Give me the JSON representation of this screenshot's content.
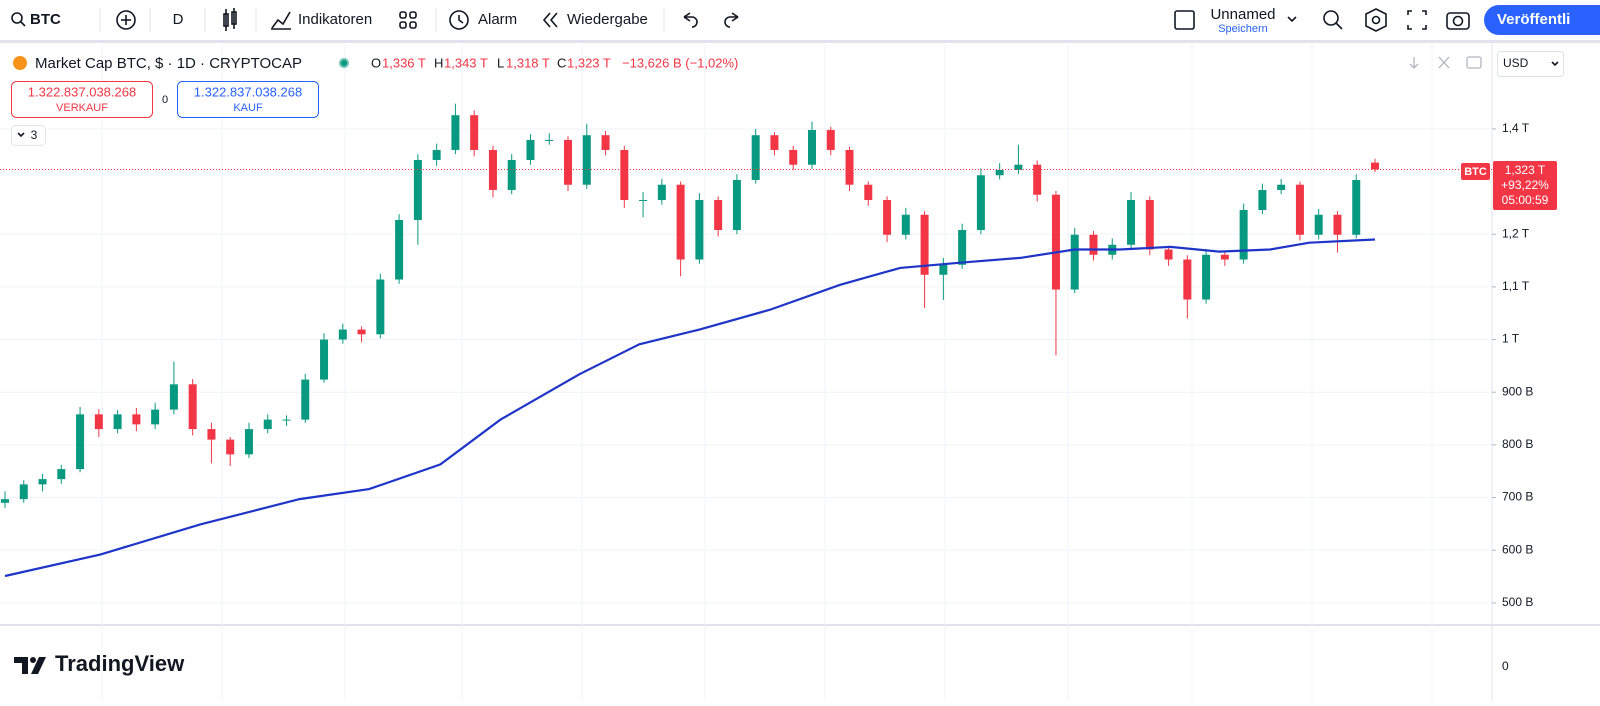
{
  "toolbar": {
    "symbol": "BTC",
    "interval": "D",
    "indicators": "Indikatoren",
    "alert": "Alarm",
    "replay": "Wiedergabe",
    "layout_name": "Unnamed",
    "save": "Speichern",
    "publish": "Veröffentli"
  },
  "legend": {
    "title": "Market Cap BTC, $ · 1D · CRYPTOCAP",
    "o_label": "O",
    "open": "1,336 T",
    "h_label": "H",
    "high": "1,343 T",
    "l_label": "L",
    "low": "1,318 T",
    "c_label": "C",
    "close": "1,323 T",
    "change": "−13,626 B (−1,02%)"
  },
  "trade": {
    "sell_price": "1.322.837.038.268",
    "sell_label": "VERKAUF",
    "spread": "0",
    "buy_price": "1.322.837.038.268",
    "buy_label": "KAUF"
  },
  "indicator_count": "3",
  "currency": "USD",
  "price_label": {
    "symbol": "BTC",
    "price": "1,323 T",
    "change": "+93,22%",
    "countdown": "05:00:59"
  },
  "lower_pane_tick": "0",
  "brand": "TradingView",
  "chart_data": {
    "type": "candlestick",
    "up_color": "#089981",
    "down_color": "#f23645",
    "ohlc": [
      [
        690,
        712,
        680,
        697
      ],
      [
        697,
        733,
        690,
        725
      ],
      [
        725,
        745,
        712,
        735
      ],
      [
        735,
        762,
        726,
        754
      ],
      [
        754,
        872,
        748,
        858
      ],
      [
        858,
        868,
        815,
        830
      ],
      [
        830,
        866,
        822,
        858
      ],
      [
        858,
        870,
        826,
        839
      ],
      [
        839,
        880,
        830,
        867
      ],
      [
        867,
        958,
        858,
        915
      ],
      [
        915,
        925,
        818,
        830
      ],
      [
        830,
        842,
        765,
        810
      ],
      [
        810,
        815,
        760,
        782
      ],
      [
        782,
        842,
        775,
        830
      ],
      [
        830,
        858,
        822,
        848
      ],
      [
        848,
        856,
        836,
        848
      ],
      [
        848,
        935,
        842,
        924
      ],
      [
        924,
        1012,
        918,
        1000
      ],
      [
        1000,
        1030,
        992,
        1019
      ],
      [
        1019,
        1025,
        995,
        1010
      ],
      [
        1010,
        1125,
        1002,
        1114
      ],
      [
        1114,
        1238,
        1106,
        1227
      ],
      [
        1227,
        1352,
        1180,
        1341
      ],
      [
        1341,
        1372,
        1330,
        1360
      ],
      [
        1360,
        1448,
        1352,
        1426
      ],
      [
        1426,
        1435,
        1348,
        1360
      ],
      [
        1360,
        1368,
        1270,
        1284
      ],
      [
        1284,
        1352,
        1276,
        1341
      ],
      [
        1341,
        1390,
        1332,
        1379
      ],
      [
        1379,
        1392,
        1370,
        1379
      ],
      [
        1379,
        1386,
        1282,
        1294
      ],
      [
        1294,
        1410,
        1286,
        1388
      ],
      [
        1388,
        1396,
        1350,
        1360
      ],
      [
        1360,
        1368,
        1250,
        1265
      ],
      [
        1265,
        1280,
        1232,
        1265
      ],
      [
        1265,
        1305,
        1256,
        1294
      ],
      [
        1294,
        1300,
        1120,
        1152
      ],
      [
        1152,
        1278,
        1144,
        1265
      ],
      [
        1265,
        1272,
        1196,
        1208
      ],
      [
        1208,
        1314,
        1200,
        1303
      ],
      [
        1303,
        1400,
        1296,
        1388
      ],
      [
        1388,
        1394,
        1350,
        1360
      ],
      [
        1360,
        1368,
        1322,
        1332
      ],
      [
        1332,
        1414,
        1324,
        1398
      ],
      [
        1398,
        1404,
        1350,
        1360
      ],
      [
        1360,
        1366,
        1282,
        1294
      ],
      [
        1294,
        1300,
        1254,
        1265
      ],
      [
        1265,
        1272,
        1185,
        1199
      ],
      [
        1199,
        1250,
        1190,
        1237
      ],
      [
        1237,
        1244,
        1060,
        1123
      ],
      [
        1123,
        1155,
        1075,
        1142
      ],
      [
        1142,
        1220,
        1134,
        1208
      ],
      [
        1208,
        1325,
        1200,
        1312
      ],
      [
        1312,
        1335,
        1304,
        1322
      ],
      [
        1322,
        1370,
        1314,
        1332
      ],
      [
        1332,
        1340,
        1262,
        1275
      ],
      [
        1275,
        1282,
        970,
        1095
      ],
      [
        1095,
        1212,
        1088,
        1199
      ],
      [
        1199,
        1206,
        1150,
        1161
      ],
      [
        1161,
        1192,
        1152,
        1180
      ],
      [
        1180,
        1280,
        1172,
        1265
      ],
      [
        1265,
        1272,
        1160,
        1171
      ],
      [
        1171,
        1178,
        1140,
        1152
      ],
      [
        1152,
        1160,
        1040,
        1076
      ],
      [
        1076,
        1172,
        1068,
        1161
      ],
      [
        1161,
        1168,
        1140,
        1152
      ],
      [
        1152,
        1258,
        1144,
        1246
      ],
      [
        1246,
        1296,
        1238,
        1284
      ],
      [
        1284,
        1305,
        1276,
        1294
      ],
      [
        1294,
        1300,
        1188,
        1199
      ],
      [
        1199,
        1248,
        1190,
        1237
      ],
      [
        1237,
        1244,
        1165,
        1199
      ],
      [
        1199,
        1314,
        1192,
        1303
      ],
      [
        1336,
        1343,
        1318,
        1323
      ]
    ],
    "ma": {
      "color": "#1e35c8",
      "x": [
        0,
        5.1,
        10.4,
        15.7,
        19.4,
        23.2,
        26.4,
        30.6,
        33.8,
        37,
        40.8,
        44.5,
        47.7,
        50.9,
        54.1,
        57,
        59.4,
        62.1,
        64.7,
        67.4,
        69.5,
        73
      ],
      "values": [
        551,
        592,
        649,
        697,
        716,
        763,
        848,
        934,
        991,
        1019,
        1057,
        1104,
        1136,
        1146,
        1155,
        1171,
        1171,
        1176,
        1167,
        1171,
        1184,
        1190
      ]
    },
    "ylim": [
      458,
      1565
    ],
    "yticks": [
      {
        "value": 500,
        "label": "500 B"
      },
      {
        "value": 600,
        "label": "600 B"
      },
      {
        "value": 700,
        "label": "700 B"
      },
      {
        "value": 800,
        "label": "800 B"
      },
      {
        "value": 900,
        "label": "900 B"
      },
      {
        "value": 1000,
        "label": "1 T"
      },
      {
        "value": 1100,
        "label": "1,1 T"
      },
      {
        "value": 1200,
        "label": "1,2 T"
      },
      {
        "value": 1400,
        "label": "1,4 T"
      }
    ],
    "grid": true
  }
}
